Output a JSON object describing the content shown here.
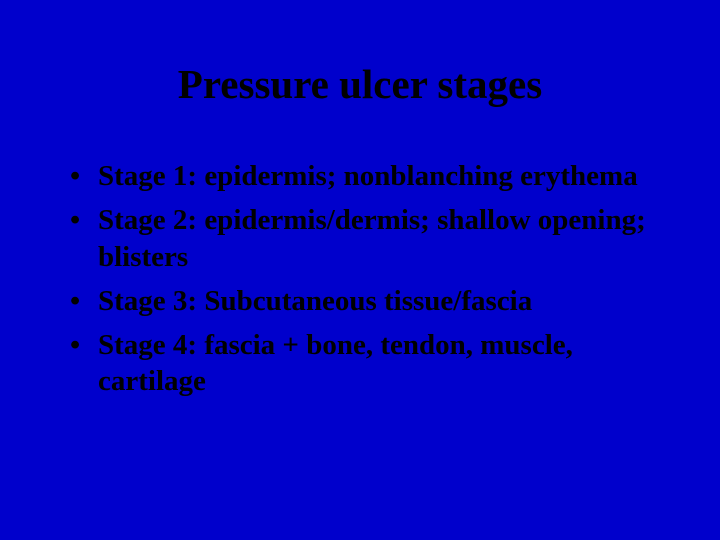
{
  "slide": {
    "title": "Pressure ulcer stages",
    "bullets": [
      "Stage 1: epidermis; nonblanching erythema",
      "Stage 2: epidermis/dermis; shallow opening; blisters",
      "Stage 3: Subcutaneous tissue/fascia",
      "Stage 4: fascia + bone, tendon, muscle, cartilage"
    ],
    "background_color": "#0000cc",
    "text_color": "#000000",
    "title_fontsize": 41,
    "bullet_fontsize": 29,
    "font_family": "Times New Roman"
  }
}
